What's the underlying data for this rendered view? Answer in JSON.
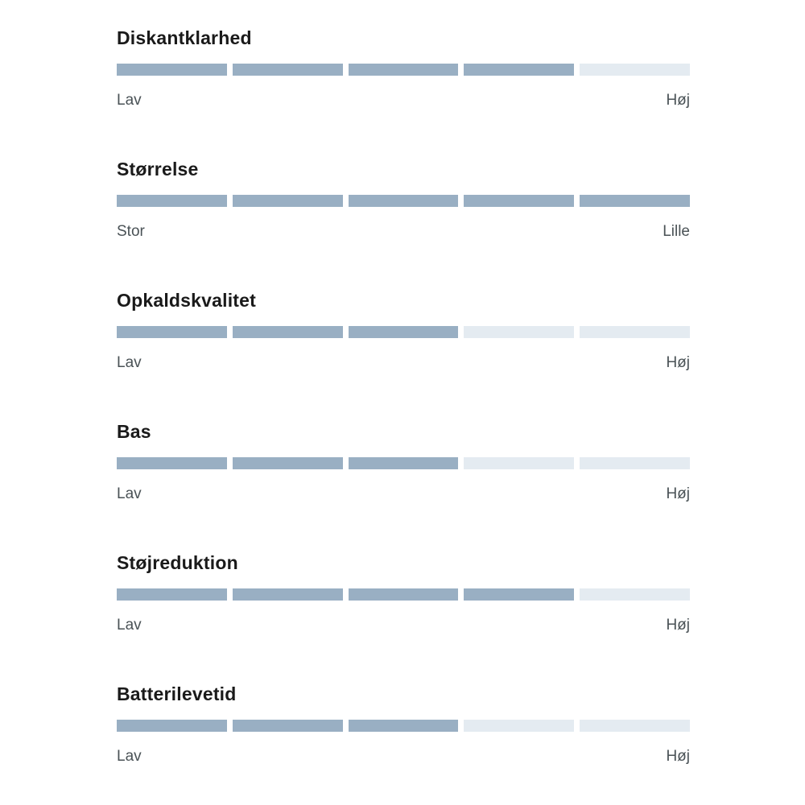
{
  "chart_data": {
    "type": "bar",
    "title": "",
    "segments_per_bar": 5,
    "value_range": [
      0,
      5
    ],
    "rows": [
      {
        "label": "Diskantklarhed",
        "value": 4,
        "min_label": "Lav",
        "max_label": "Høj"
      },
      {
        "label": "Størrelse",
        "value": 5,
        "min_label": "Stor",
        "max_label": "Lille"
      },
      {
        "label": "Opkaldskvalitet",
        "value": 3,
        "min_label": "Lav",
        "max_label": "Høj"
      },
      {
        "label": "Bas",
        "value": 3,
        "min_label": "Lav",
        "max_label": "Høj"
      },
      {
        "label": "Støjreduktion",
        "value": 4,
        "min_label": "Lav",
        "max_label": "Høj"
      },
      {
        "label": "Batterilevetid",
        "value": 3,
        "min_label": "Lav",
        "max_label": "Høj"
      }
    ]
  },
  "colors": {
    "segment_filled": "#99AFC3",
    "segment_empty": "#E4EBF1",
    "heading_text": "#1A1A1A",
    "scale_label_text": "#4A5256"
  }
}
